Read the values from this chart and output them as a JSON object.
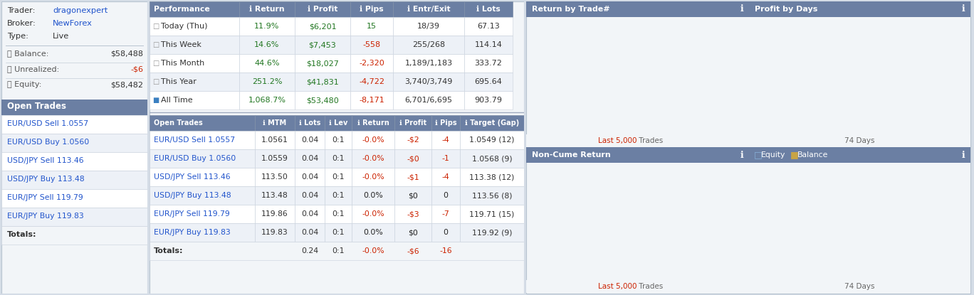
{
  "bg_color": "#d4dce6",
  "panel_bg": "#f2f5f8",
  "header_bg": "#6b7fa3",
  "row_alt": "#edf1f7",
  "row_norm": "#ffffff",
  "link_color": "#2255cc",
  "red_color": "#cc2200",
  "green_color": "#227722",
  "dark_color": "#222222",
  "gray_color": "#555555",
  "trader": "dragonexpert",
  "broker": "NewForex",
  "type_val": "Live",
  "balance": "$58,488",
  "unrealized": "-$6",
  "equity": "$58,482",
  "perf_headers": [
    "Performance",
    "ℹ Return",
    "ℹ Profit",
    "ℹ Pips",
    "ℹ Entr/Exit",
    "ℹ Lots"
  ],
  "perf_col_w": [
    126,
    78,
    78,
    60,
    100,
    68
  ],
  "perf_rows": [
    [
      "Today (Thu)",
      "11.9%",
      "$6,201",
      "15",
      "18/39",
      "67.13"
    ],
    [
      "This Week",
      "14.6%",
      "$7,453",
      "-558",
      "255/268",
      "114.14"
    ],
    [
      "This Month",
      "44.6%",
      "$18,027",
      "-2,320",
      "1,189/1,183",
      "333.72"
    ],
    [
      "This Year",
      "251.2%",
      "$41,831",
      "-4,722",
      "3,740/3,749",
      "695.64"
    ],
    [
      "All Time",
      "1,068.7%",
      "$53,480",
      "-8,171",
      "6,701/6,695",
      "903.79"
    ]
  ],
  "perf_row_bg": [
    "#ffffff",
    "#edf1f7",
    "#ffffff",
    "#edf1f7",
    "#ffffff"
  ],
  "perf_pips_fg": [
    "#227722",
    "#cc2200",
    "#cc2200",
    "#cc2200",
    "#cc2200"
  ],
  "perf_icons": [
    "□",
    "□",
    "□",
    "□",
    "■"
  ],
  "perf_icon_colors": [
    "#999999",
    "#999999",
    "#999999",
    "#999999",
    "#3a7fc1"
  ],
  "open_headers": [
    "Open Trades",
    "ℹ MTM",
    "ℹ Lots",
    "ℹ Lev",
    "ℹ Return",
    "ℹ Profit",
    "ℹ Pips",
    "ℹ Target (Gap)"
  ],
  "open_col_w": [
    148,
    56,
    42,
    38,
    60,
    52,
    40,
    90
  ],
  "open_rows": [
    [
      "EUR/USD Sell 1.0557",
      "1.0561",
      "0.04",
      "0:1",
      "-0.0%",
      "-$2",
      "-4",
      "1.0549 (12)"
    ],
    [
      "EUR/USD Buy 1.0560",
      "1.0559",
      "0.04",
      "0:1",
      "-0.0%",
      "-$0",
      "-1",
      "1.0568 (9)"
    ],
    [
      "USD/JPY Sell 113.46",
      "113.50",
      "0.04",
      "0:1",
      "-0.0%",
      "-$1",
      "-4",
      "113.38 (12)"
    ],
    [
      "USD/JPY Buy 113.48",
      "113.48",
      "0.04",
      "0:1",
      "0.0%",
      "$0",
      "0",
      "113.56 (8)"
    ],
    [
      "EUR/JPY Sell 119.79",
      "119.86",
      "0.04",
      "0:1",
      "-0.0%",
      "-$3",
      "-7",
      "119.71 (15)"
    ],
    [
      "EUR/JPY Buy 119.83",
      "119.83",
      "0.04",
      "0:1",
      "0.0%",
      "$0",
      "0",
      "119.92 (9)"
    ]
  ],
  "open_row_bg": [
    "#ffffff",
    "#edf1f7",
    "#ffffff",
    "#edf1f7",
    "#ffffff",
    "#edf1f7"
  ],
  "open_return_fg": [
    "#cc2200",
    "#cc2200",
    "#cc2200",
    "#222222",
    "#cc2200",
    "#222222"
  ],
  "open_profit_fg": [
    "#cc2200",
    "#cc2200",
    "#cc2200",
    "#222222",
    "#cc2200",
    "#222222"
  ],
  "open_pips_fg": [
    "#cc2200",
    "#cc2200",
    "#cc2200",
    "#222222",
    "#cc2200",
    "#222222"
  ],
  "totals": [
    "Totals:",
    "",
    "0.24",
    "0:1",
    "-0.0%",
    "-$6",
    "-16",
    ""
  ],
  "c1_title": "Return by Trade#",
  "c2_title": "Profit by Days",
  "c3_title": "Non-Cume Return",
  "c4_title_equity": "Equity",
  "c4_title_balance": "Balance",
  "c1_sub_red": "Last 5,000",
  "c1_sub_black": " Trades",
  "c2_sub": "74 Days",
  "c3_sub_red": "Last 5,000",
  "c3_sub_black": " Trades",
  "c4_sub": "74 Days",
  "chart_blue": "#3a7fc1",
  "chart_gold": "#c8a444",
  "info_icon": "ℹ"
}
